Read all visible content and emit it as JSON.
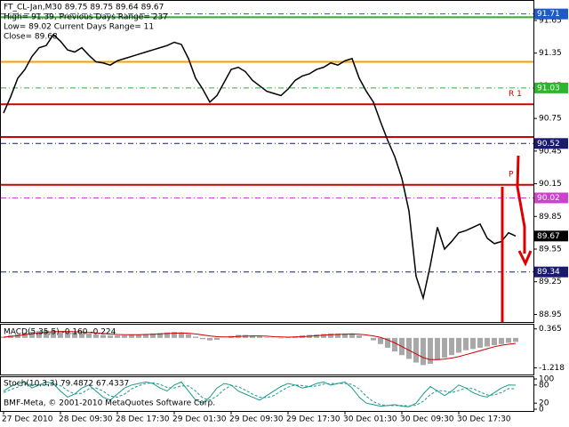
{
  "chart_data": [
    {
      "type": "line",
      "title": "FT_CL-Jan,M30  89.75 89.75 89.64 89.67",
      "annotations": [
        "High= 91.39,  Previous Days Range= 237",
        "Low= 89.02  Current Days Range= 11",
        "Close= 89.68"
      ],
      "categories": [
        "27 Dec 2010",
        null,
        null,
        null,
        null,
        null,
        null,
        null,
        "28 Dec 09:30",
        null,
        null,
        null,
        null,
        null,
        null,
        null,
        "28 Dec 17:30",
        null,
        null,
        null,
        null,
        null,
        null,
        null,
        "29 Dec 01:30",
        null,
        null,
        null,
        null,
        null,
        null,
        null,
        "29 Dec 09:30",
        null,
        null,
        null,
        null,
        null,
        null,
        null,
        "29 Dec 17:30",
        null,
        null,
        null,
        null,
        null,
        null,
        null,
        "30 Dec 01:30",
        null,
        null,
        null,
        null,
        null,
        null,
        null,
        "30 Dec 09:30",
        null,
        null,
        null,
        null,
        null,
        null,
        null,
        "30 Dec 17:30",
        null,
        null,
        null,
        null,
        null,
        null,
        null,
        null
      ],
      "series": [
        {
          "color": "#000000",
          "values": [
            90.8,
            90.95,
            91.12,
            91.2,
            91.32,
            91.4,
            91.42,
            91.52,
            91.46,
            91.38,
            91.36,
            91.4,
            91.33,
            91.27,
            91.26,
            91.24,
            91.28,
            91.3,
            91.32,
            91.34,
            91.36,
            91.38,
            91.4,
            91.42,
            91.45,
            91.43,
            91.3,
            91.12,
            91.02,
            90.9,
            90.96,
            91.08,
            91.2,
            91.22,
            91.18,
            91.1,
            91.05,
            91.0,
            90.98,
            90.96,
            91.02,
            91.1,
            91.14,
            91.16,
            91.2,
            91.22,
            91.26,
            91.24,
            91.28,
            91.3,
            91.12,
            91.0,
            90.9,
            90.72,
            90.55,
            90.4,
            90.2,
            89.9,
            89.3,
            89.1,
            89.4,
            89.75,
            89.55,
            89.62,
            89.7,
            89.72,
            89.75,
            89.78,
            89.65,
            89.6,
            89.62,
            89.7,
            89.67
          ]
        }
      ],
      "ylim": [
        88.88,
        91.83
      ],
      "yticks": [
        91.65,
        91.35,
        91.05,
        90.75,
        90.45,
        90.15,
        89.85,
        89.55,
        89.25,
        88.95
      ],
      "pivot_lines": [
        {
          "value": 91.68,
          "color": "#33aa33"
        },
        {
          "value": 91.27,
          "color": "#f0a000"
        },
        {
          "value": 90.88,
          "color": "#cc0000",
          "label": "R 1"
        },
        {
          "value": 90.58,
          "color": "#cc0000"
        },
        {
          "value": 90.14,
          "color": "#cc0000",
          "label": "P"
        }
      ],
      "price_tags": [
        {
          "value": 91.71,
          "color": "#1e5bc6",
          "dash": true
        },
        {
          "value": 91.03,
          "color": "#2db52d",
          "dash": true
        },
        {
          "value": 90.52,
          "color": "#1a1a6e",
          "dash": true
        },
        {
          "value": 90.02,
          "color": "#d040d0",
          "dash": true
        },
        {
          "value": 89.67,
          "color": "#000000",
          "dash": false
        },
        {
          "value": 89.34,
          "color": "#1a1a6e",
          "dash": true
        }
      ]
    },
    {
      "type": "bar",
      "title": "MACD(5,35,5) -0.160 -0.224",
      "series": [
        {
          "color": "#a8a8a8",
          "values": [
            0.05,
            0.1,
            0.15,
            0.2,
            0.25,
            0.28,
            0.3,
            0.3,
            0.28,
            0.25,
            0.22,
            0.2,
            0.18,
            0.15,
            0.12,
            0.1,
            0.1,
            0.1,
            0.12,
            0.14,
            0.16,
            0.18,
            0.2,
            0.22,
            0.24,
            0.22,
            0.15,
            0.05,
            -0.05,
            -0.1,
            -0.08,
            0.0,
            0.08,
            0.12,
            0.12,
            0.1,
            0.06,
            0.02,
            0.0,
            -0.02,
            0.02,
            0.06,
            0.1,
            0.12,
            0.14,
            0.16,
            0.18,
            0.18,
            0.18,
            0.18,
            0.1,
            0.0,
            -0.1,
            -0.25,
            -0.4,
            -0.55,
            -0.7,
            -0.85,
            -1.0,
            -1.1,
            -1.05,
            -0.9,
            -0.8,
            -0.7,
            -0.6,
            -0.5,
            -0.45,
            -0.4,
            -0.35,
            -0.3,
            -0.25,
            -0.2,
            -0.16
          ]
        },
        {
          "color": "#cc0000",
          "style": "line",
          "values": [
            0.03,
            0.06,
            0.09,
            0.13,
            0.17,
            0.2,
            0.23,
            0.25,
            0.26,
            0.26,
            0.25,
            0.24,
            0.22,
            0.2,
            0.18,
            0.16,
            0.14,
            0.13,
            0.13,
            0.13,
            0.14,
            0.15,
            0.16,
            0.18,
            0.19,
            0.2,
            0.19,
            0.16,
            0.12,
            0.08,
            0.05,
            0.04,
            0.04,
            0.06,
            0.07,
            0.08,
            0.08,
            0.07,
            0.05,
            0.04,
            0.03,
            0.04,
            0.05,
            0.07,
            0.09,
            0.11,
            0.13,
            0.14,
            0.15,
            0.16,
            0.15,
            0.12,
            0.08,
            0.02,
            -0.08,
            -0.2,
            -0.35,
            -0.5,
            -0.65,
            -0.8,
            -0.88,
            -0.88,
            -0.86,
            -0.82,
            -0.76,
            -0.68,
            -0.6,
            -0.52,
            -0.44,
            -0.36,
            -0.3,
            -0.26,
            -0.224
          ]
        }
      ],
      "ylim": [
        -1.45,
        0.5
      ],
      "yticks": [
        0.365,
        -1.218
      ]
    },
    {
      "type": "line",
      "title": "Stoch(10,3,3) 79.4872 67.4337",
      "annotations": [
        "BMF-Meta, © 2001-2010 MetaQuotes Software Corp."
      ],
      "series": [
        {
          "color": "#1a9a8a",
          "dash": false,
          "values": [
            60,
            75,
            85,
            90,
            70,
            80,
            90,
            85,
            60,
            40,
            50,
            70,
            80,
            60,
            40,
            30,
            50,
            70,
            80,
            85,
            90,
            85,
            70,
            60,
            80,
            90,
            60,
            30,
            20,
            40,
            70,
            85,
            80,
            60,
            50,
            40,
            30,
            45,
            60,
            75,
            85,
            80,
            70,
            75,
            85,
            90,
            80,
            85,
            90,
            70,
            40,
            20,
            15,
            10,
            12,
            15,
            10,
            8,
            20,
            50,
            75,
            60,
            45,
            60,
            80,
            70,
            55,
            45,
            40,
            55,
            70,
            80,
            79.4872
          ]
        },
        {
          "color": "#1a9a8a",
          "dash": true,
          "values": [
            55,
            65,
            73,
            83,
            82,
            80,
            80,
            85,
            78,
            62,
            50,
            53,
            67,
            70,
            60,
            43,
            40,
            50,
            67,
            78,
            85,
            87,
            82,
            72,
            70,
            77,
            77,
            60,
            37,
            30,
            43,
            65,
            78,
            75,
            63,
            50,
            40,
            38,
            45,
            60,
            73,
            80,
            78,
            75,
            77,
            83,
            85,
            85,
            85,
            82,
            67,
            43,
            25,
            15,
            12,
            12,
            12,
            11,
            13,
            26,
            48,
            62,
            60,
            55,
            62,
            70,
            68,
            57,
            47,
            47,
            55,
            68,
            67.4337
          ]
        }
      ],
      "ylim": [
        0,
        100
      ],
      "yticks": [
        100,
        80,
        20,
        0
      ]
    }
  ]
}
